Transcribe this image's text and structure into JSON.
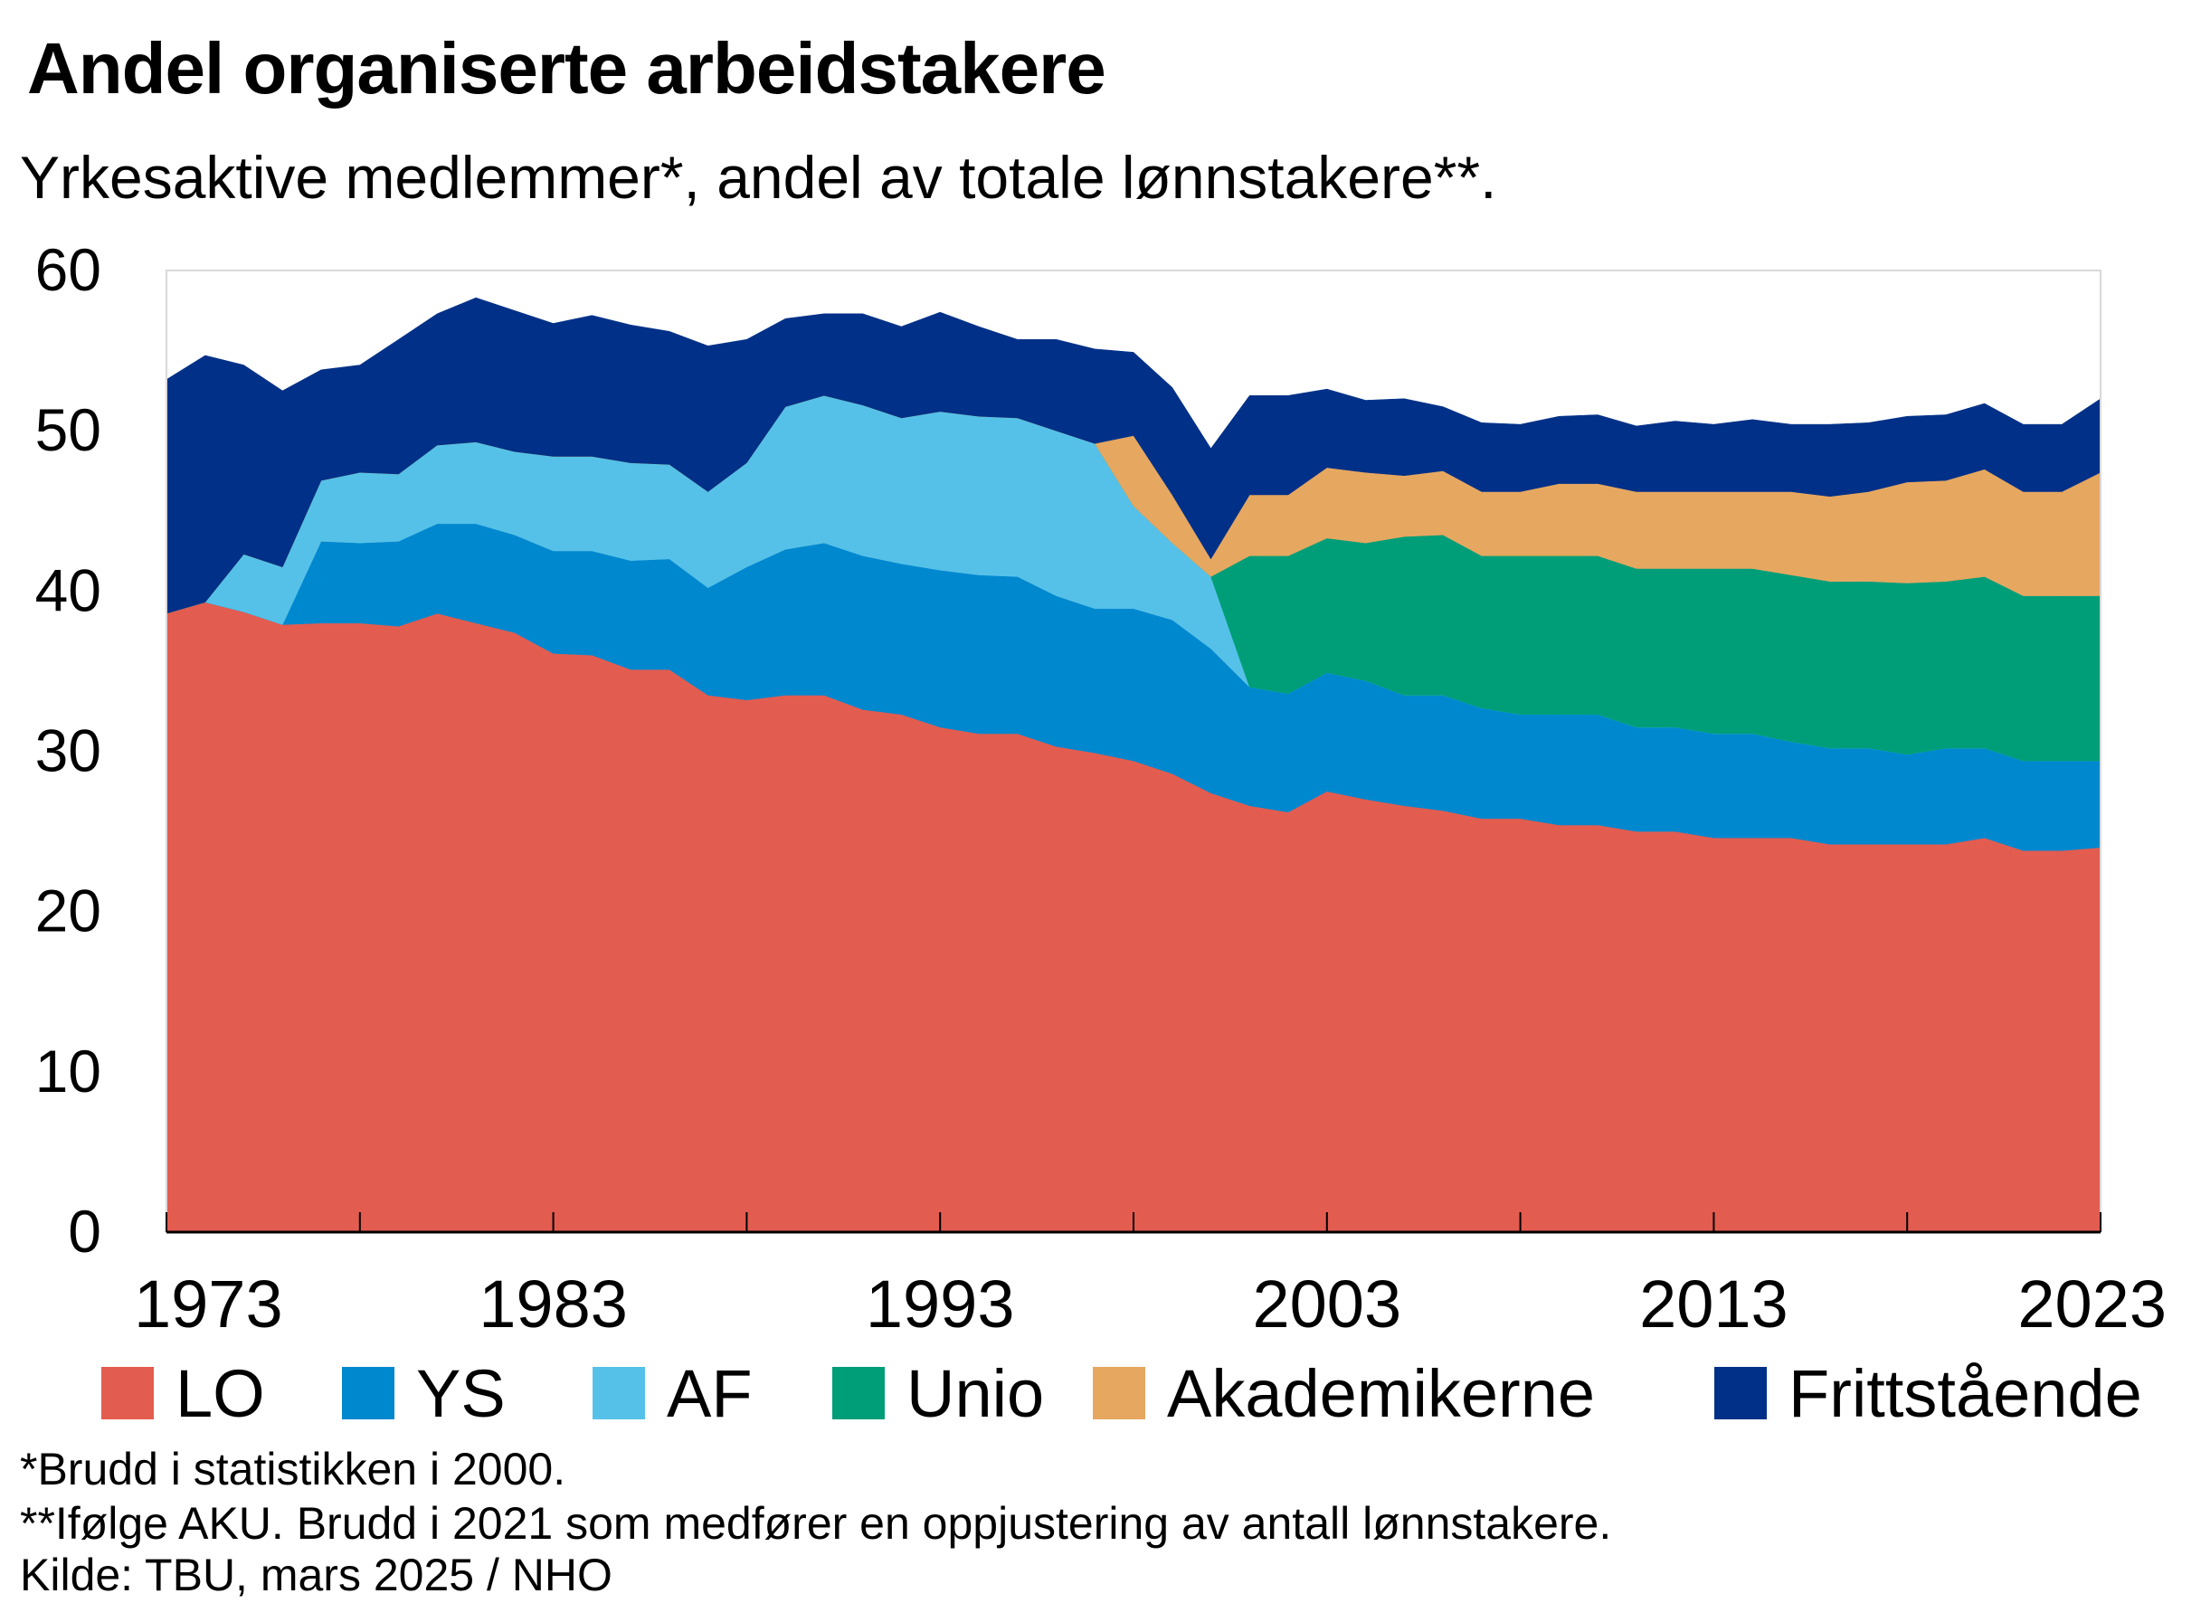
{
  "chart_data": {
    "type": "area",
    "stacked": true,
    "title": "Andel organiserte  arbeidstakere",
    "subtitle": "Yrkesaktive medlemmer*, andel av totale lønnstakere**.",
    "ylim": [
      0,
      60
    ],
    "yticks": [
      "0",
      "10",
      "20",
      "30",
      "40",
      "50",
      "60"
    ],
    "xlim": [
      1973,
      2023
    ],
    "xticks": [
      "1973",
      "1983",
      "1993",
      "2003",
      "2013",
      "2023"
    ],
    "grid": false,
    "legend_position": "bottom",
    "x": [
      1973,
      1974,
      1975,
      1976,
      1977,
      1978,
      1979,
      1980,
      1981,
      1982,
      1983,
      1984,
      1985,
      1986,
      1987,
      1988,
      1989,
      1990,
      1991,
      1992,
      1993,
      1994,
      1995,
      1996,
      1997,
      1998,
      1999,
      2000,
      2001,
      2002,
      2003,
      2004,
      2005,
      2006,
      2007,
      2008,
      2009,
      2010,
      2011,
      2012,
      2013,
      2014,
      2015,
      2016,
      2017,
      2018,
      2019,
      2020,
      2021,
      2022,
      2023
    ],
    "series": [
      {
        "name": "LO",
        "color": "#e35c50",
        "values": [
          38.6,
          39.3,
          38.7,
          37.9,
          38.0,
          38.0,
          37.8,
          38.6,
          38.0,
          37.4,
          36.1,
          36.0,
          35.1,
          35.1,
          33.5,
          33.2,
          33.5,
          33.5,
          32.6,
          32.3,
          31.5,
          31.1,
          31.1,
          30.3,
          29.9,
          29.4,
          28.6,
          27.4,
          26.6,
          26.2,
          27.5,
          27.0,
          26.6,
          26.3,
          25.8,
          25.8,
          25.4,
          25.4,
          25.0,
          25.0,
          24.6,
          24.6,
          24.6,
          24.2,
          24.2,
          24.2,
          24.2,
          24.6,
          23.8,
          23.8,
          24.0
        ]
      },
      {
        "name": "YS",
        "color": "#0088cf",
        "values": [
          0,
          0,
          0,
          0,
          5.1,
          5.0,
          5.3,
          5.6,
          6.2,
          6.1,
          6.4,
          6.5,
          6.8,
          6.9,
          6.7,
          8.3,
          9.1,
          9.5,
          9.6,
          9.4,
          9.8,
          9.9,
          9.8,
          9.4,
          9.0,
          9.5,
          9.6,
          9.0,
          7.4,
          7.4,
          7.4,
          7.4,
          6.9,
          7.2,
          6.9,
          6.5,
          6.9,
          6.9,
          6.5,
          6.5,
          6.5,
          6.5,
          6.0,
          6.0,
          6.0,
          5.6,
          6.0,
          5.6,
          5.6,
          5.6,
          5.4
        ]
      },
      {
        "name": "AF",
        "color": "#56c1e8",
        "values": [
          0,
          0,
          3.6,
          3.6,
          3.8,
          4.4,
          4.2,
          4.9,
          5.1,
          5.2,
          5.9,
          5.9,
          6.1,
          5.9,
          6.0,
          6.5,
          8.9,
          9.2,
          9.4,
          9.1,
          9.9,
          9.9,
          9.9,
          10.3,
          10.3,
          6.4,
          4.8,
          4.5,
          0,
          0,
          0,
          0,
          0,
          0,
          0,
          0,
          0,
          0,
          0,
          0,
          0,
          0,
          0,
          0,
          0,
          0,
          0,
          0,
          0,
          0,
          0
        ]
      },
      {
        "name": "Unio",
        "color": "#009e78",
        "values": [
          0,
          0,
          0,
          0,
          0,
          0,
          0,
          0,
          0,
          0,
          0,
          0,
          0,
          0,
          0,
          0,
          0,
          0,
          0,
          0,
          0,
          0,
          0,
          0,
          0,
          0,
          0,
          0,
          8.2,
          8.6,
          8.4,
          8.6,
          9.9,
          10.0,
          9.5,
          9.9,
          9.9,
          9.9,
          9.9,
          9.9,
          10.3,
          10.3,
          10.4,
          10.4,
          10.4,
          10.7,
          10.4,
          10.7,
          10.3,
          10.3,
          10.3
        ]
      },
      {
        "name": "Akademikerne",
        "color": "#e6a760",
        "values": [
          0,
          0,
          0,
          0,
          0,
          0,
          0,
          0,
          0,
          0,
          0,
          0,
          0,
          0,
          0,
          0,
          0,
          0,
          0,
          0,
          0,
          0,
          0,
          0,
          0,
          4.4,
          3.0,
          1.1,
          3.8,
          3.8,
          4.4,
          4.4,
          3.8,
          4.0,
          4.0,
          4.0,
          4.5,
          4.5,
          4.8,
          4.8,
          4.8,
          4.8,
          5.2,
          5.3,
          5.6,
          6.3,
          6.3,
          6.7,
          6.5,
          6.5,
          7.7
        ]
      },
      {
        "name": "Frittstående",
        "color": "#003087",
        "values": [
          14.6,
          15.4,
          11.8,
          11.0,
          6.9,
          6.7,
          8.4,
          8.2,
          9.0,
          8.8,
          8.3,
          8.8,
          8.6,
          8.3,
          9.1,
          7.7,
          5.5,
          5.1,
          5.7,
          5.7,
          6.2,
          5.6,
          4.9,
          5.7,
          5.9,
          5.2,
          6.7,
          6.9,
          6.2,
          6.2,
          4.9,
          4.5,
          4.8,
          4.0,
          4.3,
          4.2,
          4.2,
          4.3,
          4.1,
          4.4,
          4.2,
          4.5,
          4.2,
          4.5,
          4.3,
          4.1,
          4.1,
          4.1,
          4.2,
          4.2,
          4.6
        ]
      }
    ],
    "notes": [
      "*Brudd i statistikken i 2000.",
      "**Ifølge AKU. Brudd i 2021 som medfører en oppjustering av antall lønnstakere.",
      "Kilde: TBU, mars 2025 / NHO"
    ]
  }
}
